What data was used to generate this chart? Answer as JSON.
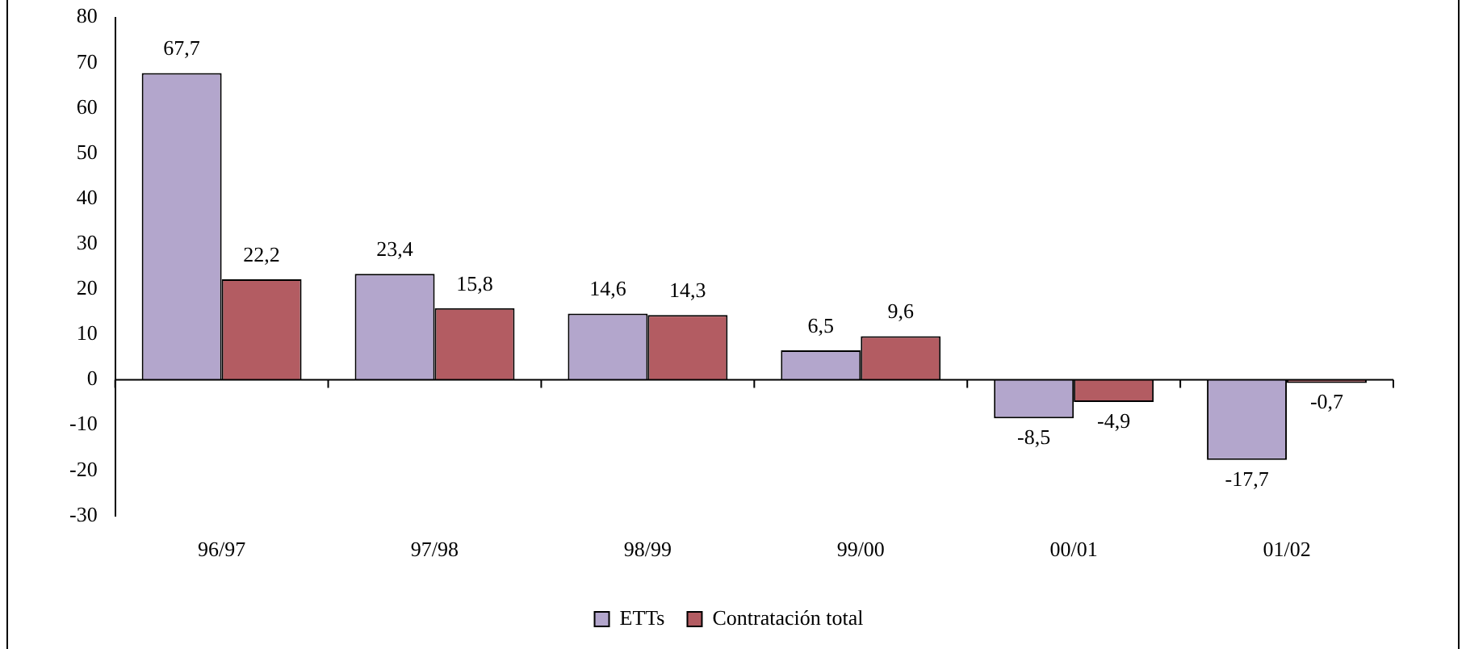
{
  "chart_data": {
    "type": "bar",
    "categories": [
      "96/97",
      "97/98",
      "98/99",
      "99/00",
      "00/01",
      "01/02"
    ],
    "series": [
      {
        "name": "ETTs",
        "color": "#b3a6cc",
        "values": [
          67.7,
          23.4,
          14.6,
          6.5,
          -8.5,
          -17.7
        ],
        "value_labels": [
          "67,7",
          "23,4",
          "14,6",
          "6,5",
          "-8,5",
          "-17,7"
        ]
      },
      {
        "name": "Contratación total",
        "color": "#b35c62",
        "values": [
          22.2,
          15.8,
          14.3,
          9.6,
          -4.9,
          -0.7
        ],
        "value_labels": [
          "22,2",
          "15,8",
          "14,3",
          "9,6",
          "-4,9",
          "-0,7"
        ]
      }
    ],
    "ylim": [
      -30,
      80
    ],
    "yticks": [
      -30,
      -20,
      -10,
      0,
      10,
      20,
      30,
      40,
      50,
      60,
      70,
      80
    ],
    "grid": false,
    "legend": "bottom",
    "ref_lines": [
      {
        "axis": "y",
        "value": 0,
        "color": "#000000"
      }
    ]
  }
}
